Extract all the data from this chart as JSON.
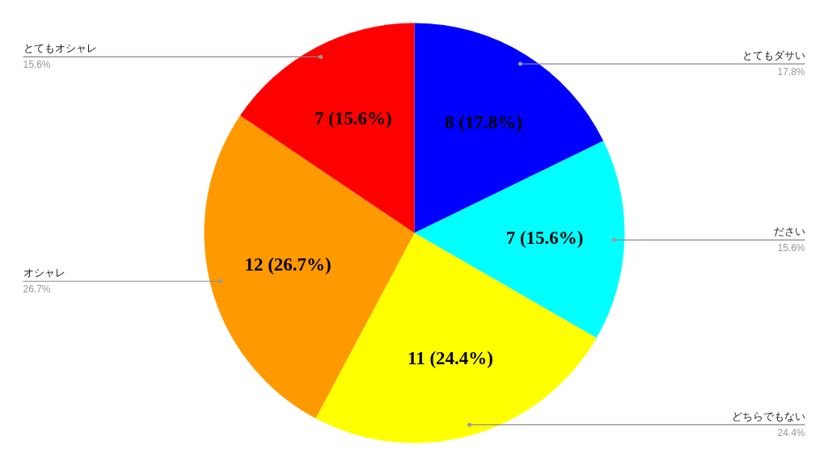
{
  "chart_data": {
    "type": "pie",
    "categories": [
      "とてもダサい",
      "ださい",
      "どちらでもない",
      "オシャレ",
      "とてもオシャレ"
    ],
    "values": [
      8,
      7,
      11,
      12,
      7
    ],
    "colors": [
      "#0000ff",
      "#00ffff",
      "#ffff00",
      "#ff9900",
      "#ff0000"
    ],
    "value_labels": [
      "8 (17.8%)",
      "7 (15.6%)",
      "11 (24.4%)",
      "12 (26.7%)",
      "7 (15.6%)"
    ],
    "annotations": [
      "17.8%",
      "15.6%",
      "24.4%",
      "26.7%",
      "15.6%"
    ]
  }
}
